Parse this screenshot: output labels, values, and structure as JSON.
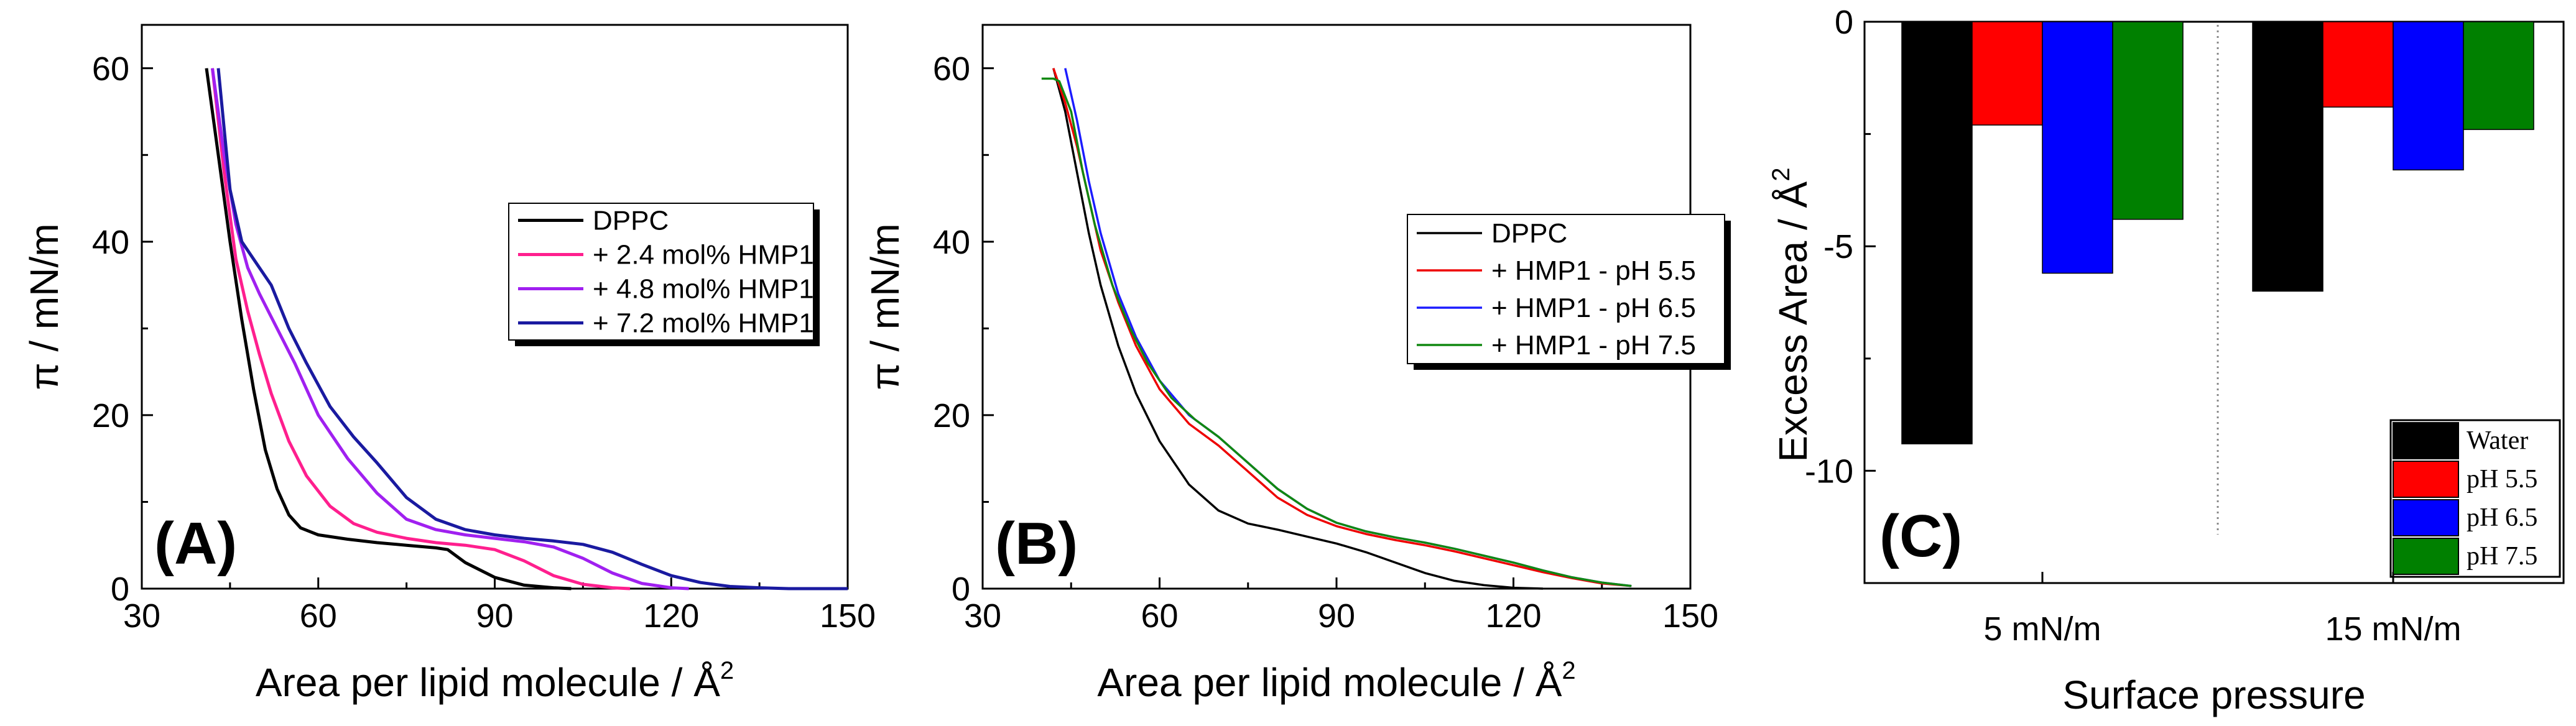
{
  "chart_data": [
    {
      "type": "line",
      "panel_label": "(A)",
      "xlabel": "Area per lipid molecule / Å",
      "xlabel_sup": "2",
      "ylabel": "π / mN/m",
      "xlim": [
        30,
        150
      ],
      "ylim": [
        0,
        65
      ],
      "xticks": [
        "30",
        "60",
        "90",
        "120",
        "150"
      ],
      "yticks": [
        "0",
        "20",
        "40",
        "60"
      ],
      "legend_position": "center-right",
      "series": [
        {
          "name": "DPPC",
          "color": "#000000",
          "x": [
            41,
            43,
            45,
            47,
            49,
            51,
            53,
            55,
            57,
            60,
            65,
            70,
            75,
            80,
            82,
            85,
            90,
            95,
            100,
            103
          ],
          "y": [
            60,
            50,
            40,
            31,
            23,
            16,
            11.5,
            8.5,
            7,
            6.2,
            5.7,
            5.3,
            5,
            4.7,
            4.5,
            3,
            1.3,
            0.4,
            0.1,
            0
          ]
        },
        {
          "name": "+ 2.4 mol% HMP1",
          "color": "#ff1f8e",
          "x": [
            42,
            44,
            46,
            48,
            50,
            52,
            55,
            58,
            62,
            66,
            70,
            75,
            80,
            85,
            90,
            95,
            100,
            105,
            110,
            113
          ],
          "y": [
            60,
            48,
            38,
            32,
            27,
            22.5,
            17,
            13,
            9.5,
            7.5,
            6.5,
            5.8,
            5.3,
            5,
            4.5,
            3.2,
            1.5,
            0.5,
            0.1,
            0
          ]
        },
        {
          "name": "+ 4.8 mol% HMP1",
          "color": "#a020f0",
          "x": [
            42,
            44,
            46,
            48,
            50,
            53,
            56,
            60,
            65,
            70,
            75,
            80,
            85,
            90,
            95,
            100,
            105,
            110,
            115,
            120,
            123
          ],
          "y": [
            60,
            50,
            42,
            37,
            34,
            30,
            26,
            20,
            15,
            11,
            8,
            6.8,
            6.2,
            5.8,
            5.4,
            4.8,
            3.5,
            1.8,
            0.6,
            0.1,
            0
          ]
        },
        {
          "name": "+ 7.2 mol% HMP1",
          "color": "#1a1aa0",
          "x": [
            43,
            45,
            47,
            49,
            52,
            55,
            58,
            62,
            66,
            70,
            75,
            80,
            85,
            90,
            95,
            100,
            105,
            110,
            115,
            120,
            125,
            130,
            135,
            140,
            150
          ],
          "y": [
            60,
            46,
            40,
            38,
            35,
            30,
            26,
            21,
            17.5,
            14.5,
            10.5,
            8,
            6.8,
            6.2,
            5.8,
            5.5,
            5.1,
            4.2,
            2.8,
            1.5,
            0.7,
            0.25,
            0.1,
            0,
            0
          ]
        }
      ]
    },
    {
      "type": "line",
      "panel_label": "(B)",
      "xlabel": "Area per lipid molecule / Å",
      "xlabel_sup": "2",
      "ylabel": "π / mN/m",
      "xlim": [
        30,
        150
      ],
      "ylim": [
        0,
        65
      ],
      "xticks": [
        "30",
        "60",
        "90",
        "120",
        "150"
      ],
      "yticks": [
        "0",
        "20",
        "40",
        "60"
      ],
      "legend_position": "center-right",
      "series": [
        {
          "name": "DPPC",
          "color": "#000000",
          "x": [
            42,
            44,
            46,
            48,
            50,
            53,
            56,
            60,
            65,
            70,
            75,
            80,
            85,
            90,
            95,
            100,
            105,
            110,
            115,
            120,
            125
          ],
          "y": [
            60,
            55,
            48,
            41,
            35,
            28,
            22.5,
            17,
            12,
            9,
            7.5,
            6.8,
            6,
            5.2,
            4.2,
            3,
            1.8,
            0.9,
            0.4,
            0.1,
            0
          ]
        },
        {
          "name": "+ HMP1 - pH 5.5",
          "color": "#ee0000",
          "x": [
            42,
            44,
            46,
            48,
            50,
            53,
            56,
            60,
            65,
            70,
            75,
            80,
            85,
            90,
            95,
            100,
            105,
            110,
            115,
            120,
            125,
            130,
            135,
            140
          ],
          "y": [
            60,
            56,
            51,
            45,
            39,
            33,
            28,
            23,
            19,
            16.5,
            13.5,
            10.5,
            8.5,
            7.2,
            6.3,
            5.6,
            5,
            4.3,
            3.5,
            2.7,
            1.9,
            1.2,
            0.6,
            0.3
          ]
        },
        {
          "name": "+ HMP1 - pH 6.5",
          "color": "#1c1cff",
          "x": [
            44,
            46,
            48,
            50,
            53,
            56,
            60,
            65,
            70,
            75,
            80,
            85,
            90,
            95,
            100,
            105,
            110,
            115,
            120,
            125,
            130,
            135,
            140
          ],
          "y": [
            60,
            54,
            47,
            41,
            34,
            29,
            24,
            20,
            17.5,
            14.5,
            11.5,
            9.2,
            7.6,
            6.6,
            5.9,
            5.3,
            4.6,
            3.8,
            3,
            2.1,
            1.3,
            0.7,
            0.3
          ]
        },
        {
          "name": "+ HMP1 - pH 7.5",
          "color": "#118811",
          "x": [
            40,
            42,
            43,
            45,
            47,
            49,
            52,
            55,
            58,
            62,
            66,
            70,
            75,
            80,
            85,
            90,
            95,
            100,
            105,
            110,
            115,
            120,
            125,
            130,
            135,
            140
          ],
          "y": [
            58.8,
            58.8,
            58.5,
            55,
            48,
            42,
            35,
            30,
            26,
            22,
            19.5,
            17.5,
            14.5,
            11.5,
            9.2,
            7.6,
            6.6,
            5.9,
            5.3,
            4.6,
            3.8,
            3,
            2.1,
            1.3,
            0.7,
            0.3
          ]
        }
      ]
    },
    {
      "type": "bar",
      "panel_label": "(C)",
      "xlabel": "Surface pressure",
      "ylabel": "Excess Area / Å",
      "ylabel_sup": "2",
      "ylim": [
        -12.5,
        0
      ],
      "yticks": [
        "0",
        "-5",
        "-10"
      ],
      "categories": [
        "5 mN/m",
        "15 mN/m"
      ],
      "legend_position": "bottom-right",
      "series": [
        {
          "name": "Water",
          "color": "#000000",
          "values": [
            -9.4,
            -6.0
          ]
        },
        {
          "name": "pH 5.5",
          "color": "#ff0000",
          "values": [
            -2.3,
            -1.9
          ]
        },
        {
          "name": "pH 6.5",
          "color": "#0000ff",
          "values": [
            -5.6,
            -3.3
          ]
        },
        {
          "name": "pH 7.5",
          "color": "#008000",
          "values": [
            -4.4,
            -2.4
          ]
        }
      ]
    }
  ]
}
